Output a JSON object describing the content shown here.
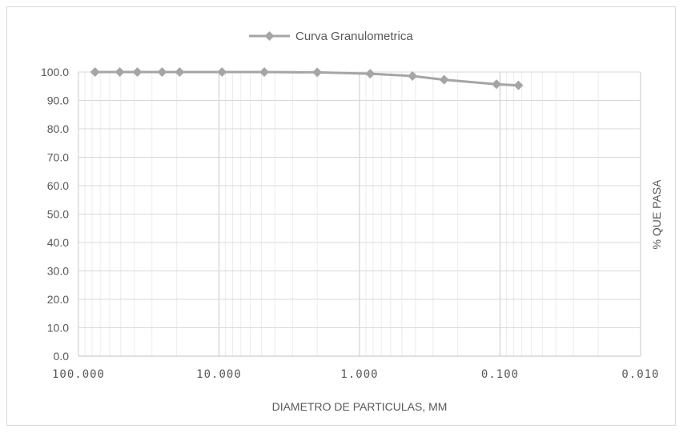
{
  "chart_data": {
    "type": "line",
    "xscale": "log",
    "xreversed": true,
    "xlim": [
      100,
      0.01
    ],
    "ylim": [
      0,
      100
    ],
    "xlabel": "DIAMETRO DE PARTICULAS, MM",
    "ylabel": "% QUE PASA",
    "x_tick_labels": [
      "100.000",
      "10.000",
      "1.000",
      "0.100",
      "0.010"
    ],
    "y_tick_labels": [
      "0.0",
      "10.0",
      "20.0",
      "30.0",
      "40.0",
      "50.0",
      "60.0",
      "70.0",
      "80.0",
      "90.0",
      "100.0"
    ],
    "grid": true,
    "legend_position": "top-center",
    "series": [
      {
        "name": "Curva Granulometrica",
        "color": "#a5a5a5",
        "marker": "diamond",
        "x": [
          76.2,
          50.8,
          38.1,
          25.4,
          19.05,
          9.525,
          4.76,
          2.0,
          0.84,
          0.42,
          0.25,
          0.106,
          0.074
        ],
        "y": [
          100.0,
          100.0,
          100.0,
          100.0,
          100.0,
          100.0,
          100.0,
          99.9,
          99.4,
          98.6,
          97.3,
          95.7,
          95.3
        ]
      }
    ]
  }
}
